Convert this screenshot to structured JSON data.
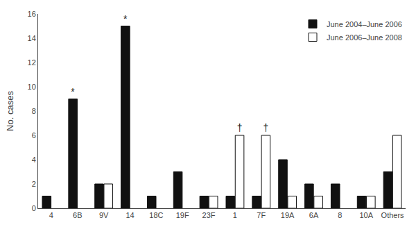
{
  "chart_data": {
    "type": "bar",
    "categories": [
      "4",
      "6B",
      "9V",
      "14",
      "18C",
      "19F",
      "23F",
      "1",
      "7F",
      "19A",
      "6A",
      "8",
      "10A",
      "Others"
    ],
    "series": [
      {
        "name": "June 2004–June 2006",
        "color": "#111111",
        "values": [
          1,
          9,
          2,
          15,
          1,
          3,
          1,
          1,
          1,
          4,
          2,
          2,
          1,
          3
        ]
      },
      {
        "name": "June 2006–June 2008",
        "color": "#ffffff",
        "values": [
          0,
          0,
          2,
          0,
          0,
          0,
          1,
          6,
          6,
          1,
          1,
          0,
          1,
          6
        ]
      }
    ],
    "annotations": [
      {
        "text": "*",
        "series": "June 2004–June 2006",
        "category": "6B"
      },
      {
        "text": "*",
        "series": "June 2004–June 2006",
        "category": "14"
      },
      {
        "text": "†",
        "series": "June 2006–June 2008",
        "category": "1"
      },
      {
        "text": "†",
        "series": "June 2006–June 2008",
        "category": "7F"
      }
    ],
    "ylabel": "No. cases",
    "ylim": [
      0,
      16
    ],
    "yticks": [
      0,
      2,
      4,
      6,
      8,
      10,
      12,
      14,
      16
    ],
    "grid": false,
    "legend": "upper right"
  }
}
